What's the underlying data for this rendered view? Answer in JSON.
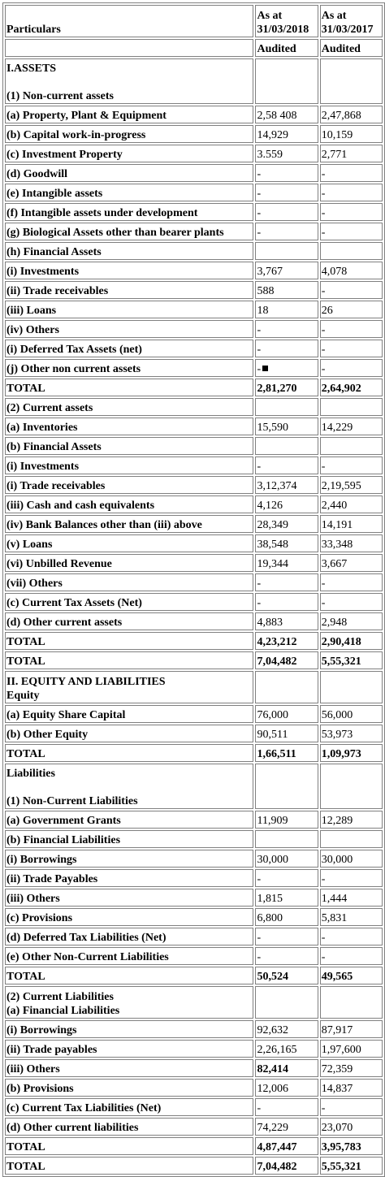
{
  "header": {
    "particulars": "Particulars",
    "col1": [
      "As at",
      "31/03/2018"
    ],
    "col2": [
      "As at",
      "31/03/2017"
    ],
    "audited1": "Audited",
    "audited2": "Audited"
  },
  "rows": [
    {
      "label": [
        "I.ASSETS",
        "",
        "(1) Non-current assets"
      ],
      "v1": "",
      "v2": "",
      "h": 3
    },
    {
      "label": [
        "(a) Property, Plant & Equipment"
      ],
      "v1": "2,58 408",
      "v2": "2,47,868"
    },
    {
      "label": [
        "(b) Capital work-in-progress"
      ],
      "v1": "14,929",
      "v2": "10,159"
    },
    {
      "label": [
        "(c) Investment Property"
      ],
      "v1": "3.559",
      "v2": "2,771"
    },
    {
      "label": [
        "(d) Goodwill"
      ],
      "v1": "-",
      "v2": "-"
    },
    {
      "label": [
        "(e) Intangible assets"
      ],
      "v1": "-",
      "v2": "-"
    },
    {
      "label": [
        "(f) Intangible assets under development"
      ],
      "v1": "-",
      "v2": "-"
    },
    {
      "label": [
        "(g) Biological Assets other than bearer plants"
      ],
      "v1": "-",
      "v2": "-"
    },
    {
      "label": [
        "(h) Financial Assets"
      ],
      "v1": "",
      "v2": ""
    },
    {
      "label": [
        "(i) Investments"
      ],
      "v1": "3,767",
      "v2": "4,078"
    },
    {
      "label": [
        "(ii) Trade receivables"
      ],
      "v1": "588",
      "v2": "-"
    },
    {
      "label": [
        "(iii) Loans"
      ],
      "v1": "18",
      "v2": "26"
    },
    {
      "label": [
        "(iv) Others"
      ],
      "v1": "-",
      "v2": "-"
    },
    {
      "label": [
        "(i) Deferred Tax Assets (net)"
      ],
      "v1": "-",
      "v2": "-"
    },
    {
      "label": [
        "(j) Other non current assets"
      ],
      "v1": "-",
      "v2": "-",
      "mark": true
    },
    {
      "label": [
        "TOTAL"
      ],
      "v1": "2,81,270",
      "v2": "2,64,902",
      "bold": true
    },
    {
      "label": [
        "(2) Current assets"
      ],
      "v1": "",
      "v2": ""
    },
    {
      "label": [
        "(a) Inventories"
      ],
      "v1": "15,590",
      "v2": "14,229"
    },
    {
      "label": [
        "(b) Financial Assets"
      ],
      "v1": "",
      "v2": ""
    },
    {
      "label": [
        "(i) Investments"
      ],
      "v1": "-",
      "v2": "-"
    },
    {
      "label": [
        "(i) Trade receivables"
      ],
      "v1": "3,12,374",
      "v2": "2,19,595"
    },
    {
      "label": [
        "(iii) Cash and cash equivalents"
      ],
      "v1": "4,126",
      "v2": "2,440"
    },
    {
      "label": [
        "(iv) Bank Balances other than (iii) above"
      ],
      "v1": "28,349",
      "v2": "14,191"
    },
    {
      "label": [
        "(v) Loans"
      ],
      "v1": "38,548",
      "v2": "33,348"
    },
    {
      "label": [
        "(vi) Unbilled Revenue"
      ],
      "v1": "19,344",
      "v2": "3,667"
    },
    {
      "label": [
        "(vii) Others"
      ],
      "v1": "-",
      "v2": "-"
    },
    {
      "label": [
        "(c) Current Tax Assets (Net)"
      ],
      "v1": "-",
      "v2": "-"
    },
    {
      "label": [
        "(d) Other current assets"
      ],
      "v1": "4,883",
      "v2": "2,948"
    },
    {
      "label": [
        "TOTAL"
      ],
      "v1": "4,23,212",
      "v2": "2,90,418",
      "bold": true
    },
    {
      "label": [
        "TOTAL"
      ],
      "v1": "7,04,482",
      "v2": "5,55,321",
      "bold": true
    },
    {
      "label": [
        "II. EQUITY AND LIABILITIES",
        "Equity"
      ],
      "v1": "",
      "v2": "",
      "h": 2
    },
    {
      "label": [
        "(a) Equity Share Capital"
      ],
      "v1": "76,000",
      "v2": "56,000"
    },
    {
      "label": [
        "(b) Other Equity"
      ],
      "v1": "90,511",
      "v2": "53,973"
    },
    {
      "label": [
        "TOTAL"
      ],
      "v1": "1,66,511",
      "v2": "1,09,973",
      "bold": true
    },
    {
      "label": [
        "Liabilities",
        "",
        "(1) Non-Current Liabilities"
      ],
      "v1": "",
      "v2": "",
      "h": 3
    },
    {
      "label": [
        "(a) Government Grants"
      ],
      "v1": "11,909",
      "v2": "12,289"
    },
    {
      "label": [
        "(b) Financial Liabilities"
      ],
      "v1": "",
      "v2": ""
    },
    {
      "label": [
        "(i) Borrowings"
      ],
      "v1": "30,000",
      "v2": "30,000"
    },
    {
      "label": [
        "(ii) Trade Payables"
      ],
      "v1": "-",
      "v2": "-"
    },
    {
      "label": [
        "(iii) Others"
      ],
      "v1": "1,815",
      "v2": "1,444"
    },
    {
      "label": [
        "(c) Provisions"
      ],
      "v1": "6,800",
      "v2": "5,831"
    },
    {
      "label": [
        "(d) Deferred Tax Liabilities (Net)"
      ],
      "v1": "-",
      "v2": "-"
    },
    {
      "label": [
        "(e) Other Non-Current Liabilities"
      ],
      "v1": "-",
      "v2": "-"
    },
    {
      "label": [
        "TOTAL"
      ],
      "v1": "50,524",
      "v2": "49,565",
      "bold": true
    },
    {
      "label": [
        "(2) Current Liabilities",
        "(a) Financial Liabilities"
      ],
      "v1": "",
      "v2": "",
      "h": 2
    },
    {
      "label": [
        "(i) Borrowings"
      ],
      "v1": "92,632",
      "v2": "87,917"
    },
    {
      "label": [
        "(ii) Trade payables"
      ],
      "v1": "2,26,165",
      "v2": "1,97,600"
    },
    {
      "label": [
        "(iii) Others"
      ],
      "v1": "82,414",
      "v2": "72,359",
      "bold1": true
    },
    {
      "label": [
        "(b) Provisions"
      ],
      "v1": "12,006",
      "v2": "14,837"
    },
    {
      "label": [
        "(c) Current Tax Liabilities (Net)"
      ],
      "v1": "-",
      "v2": "-"
    },
    {
      "label": [
        "(d) Other current liabilities"
      ],
      "v1": "74,229",
      "v2": "23,070"
    },
    {
      "label": [
        "TOTAL"
      ],
      "v1": "4,87,447",
      "v2": "3,95,783",
      "bold": true
    },
    {
      "label": [
        "TOTAL"
      ],
      "v1": "7,04,482",
      "v2": "5,55,321",
      "bold": true
    }
  ]
}
